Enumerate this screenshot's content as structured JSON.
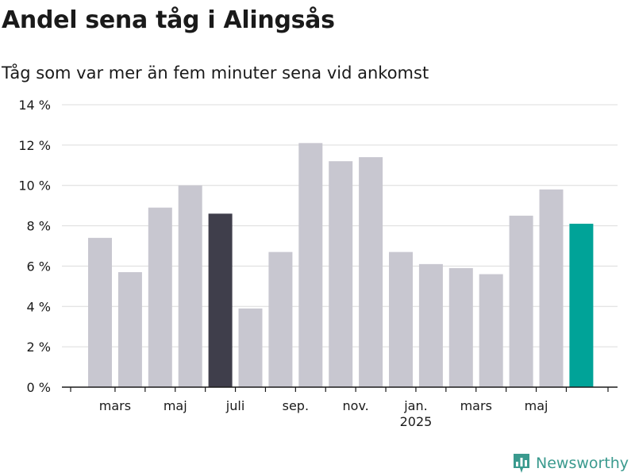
{
  "title": "Andel sena tåg i Alingsås",
  "subtitle": "Tåg som var mer än fem minuter sena vid ankomst",
  "brand": {
    "name": "Newsworthy",
    "icon": "bar-chart-logo-icon",
    "color": "#3a9a8e"
  },
  "chart_data": {
    "type": "bar",
    "title": "Andel sena tåg i Alingsås",
    "subtitle": "Tåg som var mer än fem minuter sena vid ankomst",
    "xlabel": "",
    "ylabel": "",
    "ylim": [
      0,
      14
    ],
    "y_ticks": [
      0,
      2,
      4,
      6,
      8,
      10,
      12,
      14
    ],
    "y_tick_labels": [
      "0 %",
      "2 %",
      "4 %",
      "6 %",
      "8 %",
      "10 %",
      "12 %",
      "14 %"
    ],
    "grid": true,
    "legend": "none",
    "x_tick_labels": [
      {
        "label": "mars",
        "index": 1
      },
      {
        "label": "maj",
        "index": 3
      },
      {
        "label": "juli",
        "index": 5
      },
      {
        "label": "sep.",
        "index": 7
      },
      {
        "label": "nov.",
        "index": 9
      },
      {
        "label": "jan.",
        "index": 11,
        "sublabel": "2025"
      },
      {
        "label": "mars",
        "index": 13
      },
      {
        "label": "maj",
        "index": 15
      }
    ],
    "values": [
      7.4,
      5.7,
      8.9,
      10.0,
      8.6,
      3.9,
      6.7,
      12.1,
      11.2,
      11.4,
      6.7,
      6.1,
      5.9,
      5.6,
      8.5,
      9.8,
      8.1
    ],
    "colors": {
      "default": "#c8c7d0",
      "highlight_previous": "#3f3e4b",
      "highlight_current": "#00a398"
    },
    "highlight_previous_index": 4,
    "highlight_current_index": 16
  }
}
